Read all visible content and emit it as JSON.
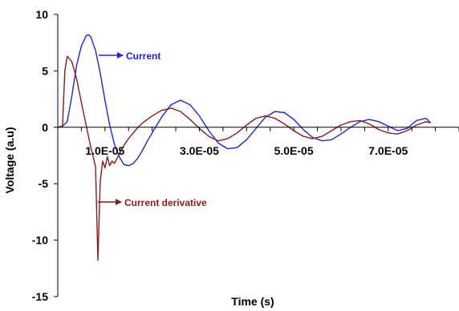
{
  "chart_data": {
    "type": "line",
    "title": "",
    "xlabel": "Time (s)",
    "ylabel": "Voltage (a.u)",
    "xlim": [
      0,
      8.5e-05
    ],
    "ylim": [
      -15,
      10
    ],
    "x_tick_labels": [
      "1.0E-05",
      "3.0E-05",
      "5.0E-05",
      "7.0E-05"
    ],
    "x_tick_values": [
      1e-05,
      3e-05,
      5e-05,
      7e-05
    ],
    "y_tick_values": [
      10,
      5,
      0,
      -5,
      -10,
      -15
    ],
    "grid": false,
    "colors": {
      "current": "#2020f0",
      "derivative": "#8b1a1a",
      "axis": "#000000"
    },
    "annotations": [
      {
        "text": "Current",
        "series": "current"
      },
      {
        "text": "Current derivative",
        "series": "derivative"
      }
    ],
    "series": [
      {
        "key": "current",
        "x": [
          0,
          1e-06,
          2e-06,
          3e-06,
          4e-06,
          5e-06,
          6e-06,
          6.5e-06,
          7e-06,
          8e-06,
          9e-06,
          1e-05,
          1.1e-05,
          1.2e-05,
          1.3e-05,
          1.4e-05,
          1.5e-05,
          1.6e-05,
          1.7e-05,
          1.8e-05,
          1.9e-05,
          2e-05,
          2.2e-05,
          2.4e-05,
          2.6e-05,
          2.8e-05,
          3e-05,
          3.2e-05,
          3.4e-05,
          3.6e-05,
          3.8e-05,
          4e-05,
          4.2e-05,
          4.4e-05,
          4.6e-05,
          4.8e-05,
          5e-05,
          5.2e-05,
          5.4e-05,
          5.6e-05,
          5.8e-05,
          6e-05,
          6.2e-05,
          6.4e-05,
          6.6e-05,
          6.8e-05,
          7e-05,
          7.2e-05,
          7.4e-05,
          7.6e-05,
          7.8e-05,
          7.9e-05
        ],
        "y": [
          0,
          0.1,
          0.5,
          2.8,
          5.5,
          7.2,
          8.1,
          8.2,
          8.0,
          6.8,
          4.8,
          2.4,
          0.2,
          -1.5,
          -2.6,
          -3.3,
          -3.4,
          -3.2,
          -2.7,
          -2.0,
          -1.2,
          -0.5,
          0.9,
          2.0,
          2.4,
          2.0,
          1.0,
          -0.3,
          -1.4,
          -1.9,
          -1.8,
          -1.1,
          -0.1,
          0.9,
          1.4,
          1.3,
          0.7,
          -0.2,
          -0.9,
          -1.2,
          -1.1,
          -0.6,
          0.0,
          0.5,
          0.7,
          0.5,
          0.1,
          -0.3,
          -0.1,
          0.6,
          0.8,
          0.4
        ]
      },
      {
        "key": "derivative",
        "x": [
          0,
          1e-06,
          1.5e-06,
          2e-06,
          3e-06,
          4e-06,
          5e-06,
          6e-06,
          7e-06,
          7.5e-06,
          8e-06,
          8.5e-06,
          9e-06,
          9.5e-06,
          1e-05,
          1.05e-05,
          1.1e-05,
          1.15e-05,
          1.2e-05,
          1.25e-05,
          1.3e-05,
          1.4e-05,
          1.5e-05,
          1.6e-05,
          1.7e-05,
          1.8e-05,
          2e-05,
          2.2e-05,
          2.4e-05,
          2.6e-05,
          2.8e-05,
          3e-05,
          3.2e-05,
          3.4e-05,
          3.6e-05,
          3.8e-05,
          4e-05,
          4.2e-05,
          4.4e-05,
          4.6e-05,
          4.8e-05,
          5e-05,
          5.2e-05,
          5.4e-05,
          5.6e-05,
          5.8e-05,
          6e-05,
          6.2e-05,
          6.4e-05,
          6.6e-05,
          6.8e-05,
          7e-05,
          7.2e-05,
          7.4e-05,
          7.6e-05,
          7.8e-05,
          7.9e-05
        ],
        "y": [
          0,
          0.1,
          5.0,
          6.3,
          5.8,
          4.3,
          2.2,
          0.2,
          -1.8,
          -2.6,
          -3.5,
          -11.8,
          -4.8,
          -3.0,
          -3.6,
          -2.6,
          -3.4,
          -3.0,
          -3.2,
          -2.8,
          -2.4,
          -1.6,
          -1.0,
          -0.5,
          0.0,
          0.4,
          1.0,
          1.5,
          1.7,
          1.4,
          0.7,
          -0.1,
          -0.8,
          -1.2,
          -1.0,
          -0.5,
          0.2,
          0.8,
          1.0,
          0.8,
          0.3,
          -0.3,
          -0.8,
          -1.0,
          -0.8,
          -0.3,
          0.2,
          0.5,
          0.6,
          0.3,
          -0.2,
          -0.5,
          -0.6,
          -0.3,
          0.2,
          0.5,
          0.4
        ]
      }
    ]
  }
}
